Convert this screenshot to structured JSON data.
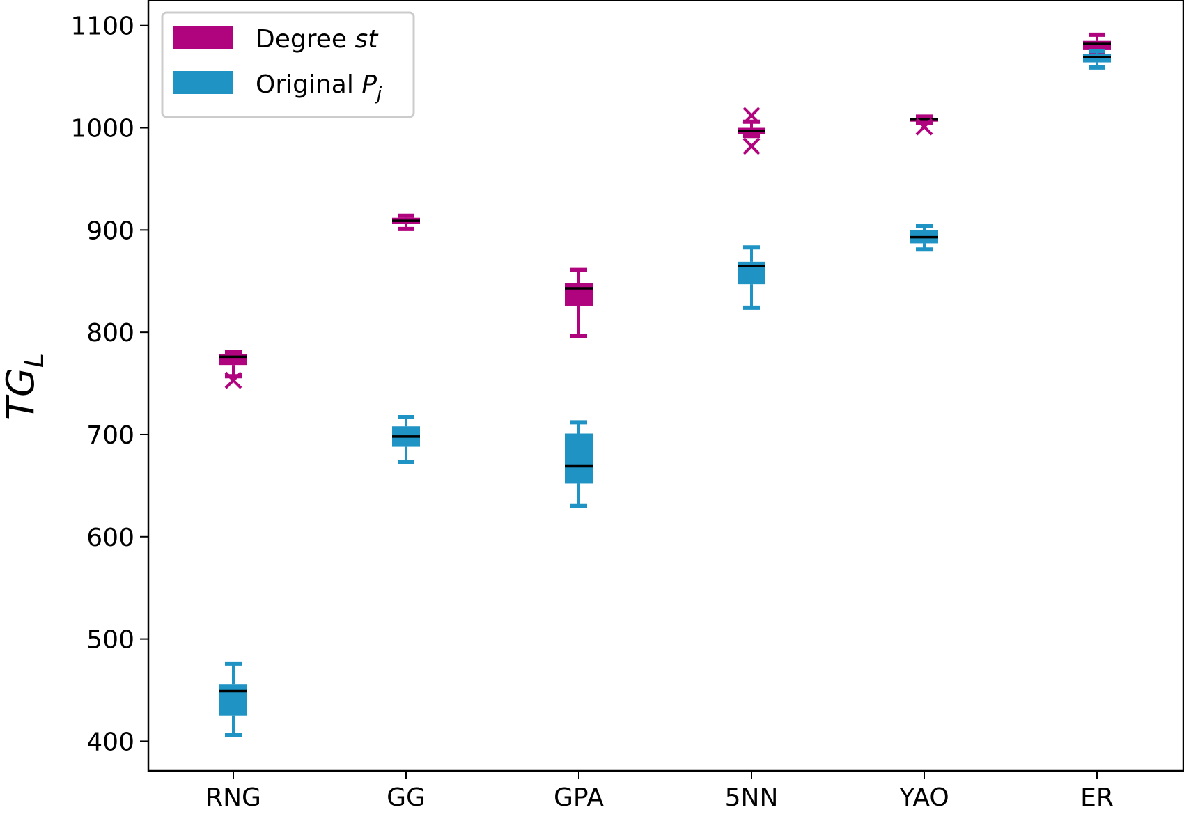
{
  "chart_data": {
    "type": "box",
    "categories": [
      "RNG",
      "GG",
      "GPA",
      "5NN",
      "YAO",
      "ER"
    ],
    "ylabel": "TG_L",
    "ylabel_main": "TG",
    "ylabel_sub": "L",
    "ylim": [
      371,
      1125
    ],
    "yticks": [
      400,
      500,
      600,
      700,
      800,
      900,
      1000,
      1100
    ],
    "legend_position": "top-left",
    "series": [
      {
        "name": "Degree st",
        "legend_plain": "Degree ",
        "legend_italic": "st",
        "color": "#b0047e",
        "boxes": [
          {
            "whislo": 757,
            "q1": 768,
            "med": 776,
            "q3": 779,
            "whishi": 781,
            "fliers": [
              753
            ]
          },
          {
            "whislo": 901,
            "q1": 906,
            "med": 909,
            "q3": 912,
            "whishi": 914,
            "fliers": []
          },
          {
            "whislo": 796,
            "q1": 826,
            "med": 843,
            "q3": 848,
            "whishi": 861,
            "fliers": []
          },
          {
            "whislo": 992,
            "q1": 994,
            "med": 997,
            "q3": 1000,
            "whishi": 1006,
            "fliers": [
              1012,
              982
            ]
          },
          {
            "whislo": 1005,
            "q1": 1006,
            "med": 1008,
            "q3": 1009,
            "whishi": 1011,
            "fliers": [
              1001
            ]
          },
          {
            "whislo": 1073,
            "q1": 1076,
            "med": 1082,
            "q3": 1085,
            "whishi": 1091,
            "fliers": []
          }
        ]
      },
      {
        "name": "Original P_j",
        "legend_plain": "Original ",
        "legend_italic": "P",
        "legend_sub": "j",
        "color": "#1f93c4",
        "boxes": [
          {
            "whislo": 406,
            "q1": 425,
            "med": 449,
            "q3": 456,
            "whishi": 476,
            "fliers": []
          },
          {
            "whislo": 673,
            "q1": 688,
            "med": 698,
            "q3": 708,
            "whishi": 717,
            "fliers": []
          },
          {
            "whislo": 630,
            "q1": 652,
            "med": 669,
            "q3": 701,
            "whishi": 712,
            "fliers": []
          },
          {
            "whislo": 824,
            "q1": 847,
            "med": 865,
            "q3": 869,
            "whishi": 883,
            "fliers": []
          },
          {
            "whislo": 881,
            "q1": 887,
            "med": 893,
            "q3": 900,
            "whishi": 904,
            "fliers": []
          },
          {
            "whislo": 1059,
            "q1": 1064,
            "med": 1069,
            "q3": 1072,
            "whishi": 1075,
            "fliers": []
          }
        ]
      }
    ]
  }
}
